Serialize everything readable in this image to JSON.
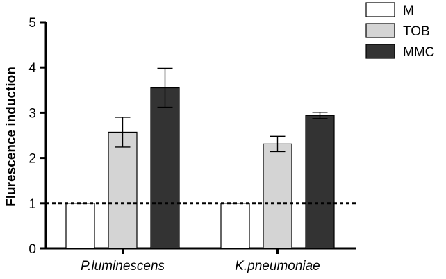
{
  "chart_data": {
    "type": "bar",
    "ylabel": "Flurescence induction",
    "xlabel": "",
    "ylim": [
      0,
      5
    ],
    "yticks": [
      "0",
      "1",
      "2",
      "3",
      "4",
      "5"
    ],
    "categories": [
      "P.luminescens",
      "K.pneumoniae"
    ],
    "series": [
      {
        "name": "M",
        "color": "#ffffff",
        "values": [
          1.0,
          1.0
        ],
        "errors": [
          0,
          0
        ]
      },
      {
        "name": "TOB",
        "color": "#d4d4d4",
        "values": [
          2.57,
          2.31
        ],
        "errors": [
          0.33,
          0.17
        ]
      },
      {
        "name": "MMC",
        "color": "#333333",
        "values": [
          3.55,
          2.94
        ],
        "errors": [
          0.43,
          0.07
        ]
      }
    ],
    "reference_line": {
      "value": 1,
      "style": "dotted"
    },
    "legend": "top-right",
    "grid": false
  }
}
